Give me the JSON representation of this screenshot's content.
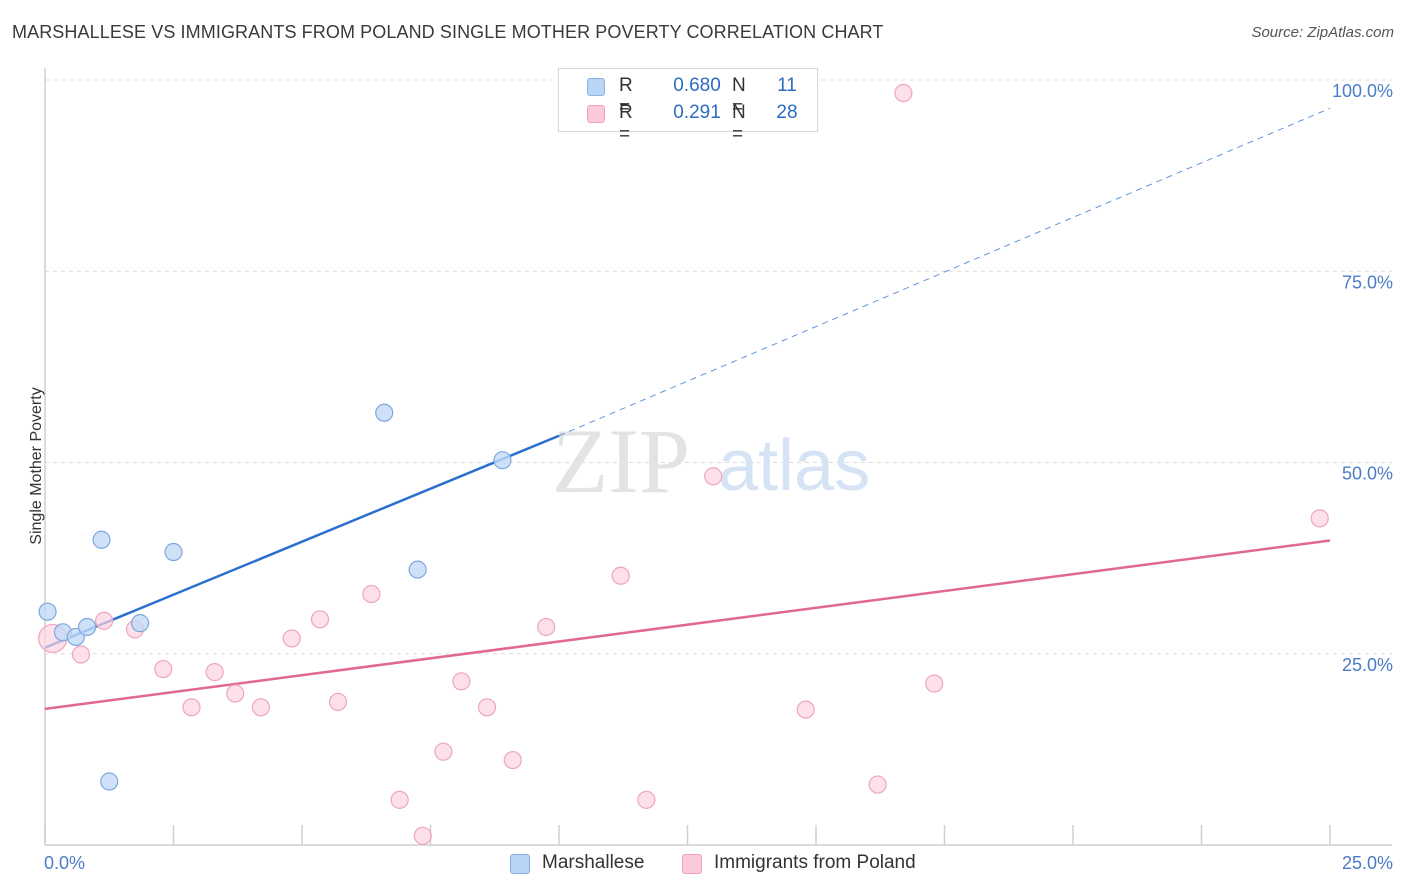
{
  "title": "MARSHALLESE VS IMMIGRANTS FROM POLAND SINGLE MOTHER POVERTY CORRELATION CHART",
  "source": "Source: ZipAtlas.com",
  "watermark": {
    "zip": "ZIP",
    "atlas": "atlas"
  },
  "legend": {
    "r_label": "R =",
    "n_label": "N =",
    "rows": [
      {
        "r": "0.680",
        "n": "11",
        "color": "#b9d4f5",
        "border": "#8ab2e4"
      },
      {
        "r": "0.291",
        "n": "28",
        "color": "#fbc9d8",
        "border": "#f0a3bb"
      }
    ]
  },
  "colors": {
    "blue_line": "#2a6fd0",
    "pink_line": "#e06893",
    "blue_fill": "#c3daf6",
    "blue_stroke": "#7ea8de",
    "pink_fill": "#fcd3df",
    "pink_stroke": "#eea6bd",
    "tick_label": "#4a7cc7"
  },
  "chart_data": {
    "type": "scatter",
    "title": "MARSHALLESE VS IMMIGRANTS FROM POLAND SINGLE MOTHER POVERTY CORRELATION CHART",
    "xlabel": "",
    "ylabel": "Single Mother Poverty",
    "xlim": [
      0,
      25
    ],
    "ylim": [
      0,
      100
    ],
    "x_ticks": [
      "0.0%",
      "25.0%"
    ],
    "y_ticks": [
      {
        "v": 25,
        "label": "25.0%"
      },
      {
        "v": 50,
        "label": "50.0%"
      },
      {
        "v": 75,
        "label": "75.0%"
      },
      {
        "v": 100,
        "label": "100.0%"
      }
    ],
    "grid": true,
    "legend_position": "top-center",
    "series": [
      {
        "name": "Marshallese",
        "r": 0.68,
        "n": 11,
        "points": [
          {
            "x": 0.05,
            "y": 30.5
          },
          {
            "x": 0.35,
            "y": 27.8
          },
          {
            "x": 0.6,
            "y": 27.2
          },
          {
            "x": 0.82,
            "y": 28.5
          },
          {
            "x": 1.1,
            "y": 39.9
          },
          {
            "x": 1.25,
            "y": 8.3
          },
          {
            "x": 1.85,
            "y": 29.0
          },
          {
            "x": 2.5,
            "y": 38.3
          },
          {
            "x": 6.6,
            "y": 56.5
          },
          {
            "x": 7.25,
            "y": 36.0
          },
          {
            "x": 8.9,
            "y": 50.3
          }
        ],
        "trend": {
          "x0": 0,
          "y0": 25.8,
          "x1": 10,
          "y1": 53.5,
          "dash_to_x": 25,
          "dash_to_y": 96.3
        }
      },
      {
        "name": "Immigrants from Poland",
        "r": 0.291,
        "n": 28,
        "points": [
          {
            "x": 0.15,
            "y": 27.0
          },
          {
            "x": 0.7,
            "y": 24.9
          },
          {
            "x": 1.15,
            "y": 29.3
          },
          {
            "x": 1.75,
            "y": 28.2
          },
          {
            "x": 2.3,
            "y": 23.0
          },
          {
            "x": 2.85,
            "y": 18.0
          },
          {
            "x": 3.3,
            "y": 22.6
          },
          {
            "x": 3.7,
            "y": 19.8
          },
          {
            "x": 4.2,
            "y": 18.0
          },
          {
            "x": 4.8,
            "y": 27.0
          },
          {
            "x": 5.35,
            "y": 29.5
          },
          {
            "x": 5.7,
            "y": 18.7
          },
          {
            "x": 6.35,
            "y": 32.8
          },
          {
            "x": 6.9,
            "y": 5.9
          },
          {
            "x": 7.35,
            "y": 1.2
          },
          {
            "x": 7.75,
            "y": 12.2
          },
          {
            "x": 8.1,
            "y": 21.4
          },
          {
            "x": 8.6,
            "y": 18.0
          },
          {
            "x": 9.1,
            "y": 11.1
          },
          {
            "x": 9.75,
            "y": 28.5
          },
          {
            "x": 11.2,
            "y": 35.2
          },
          {
            "x": 11.7,
            "y": 5.9
          },
          {
            "x": 13.0,
            "y": 48.2
          },
          {
            "x": 14.8,
            "y": 17.7
          },
          {
            "x": 16.2,
            "y": 7.9
          },
          {
            "x": 16.7,
            "y": 98.3
          },
          {
            "x": 17.3,
            "y": 21.1
          },
          {
            "x": 24.8,
            "y": 42.7
          }
        ],
        "trend": {
          "x0": 0,
          "y0": 17.8,
          "x1": 25,
          "y1": 39.8
        }
      }
    ]
  }
}
